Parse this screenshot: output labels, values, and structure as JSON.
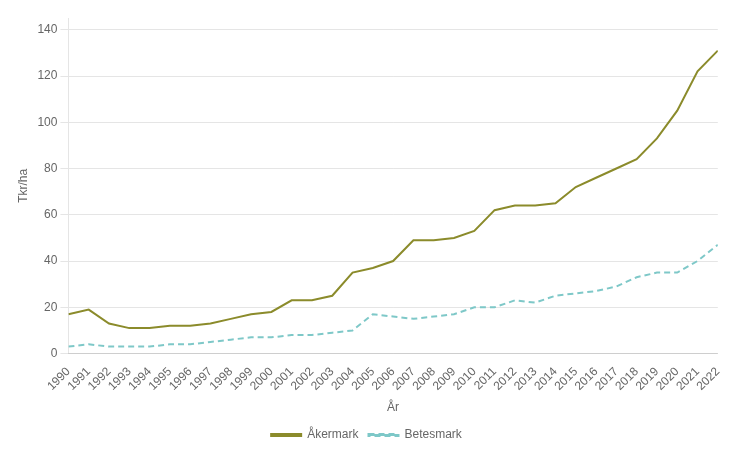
{
  "chart_data": {
    "type": "line",
    "x_label": "År",
    "y_label": "Tkr/ha",
    "x": [
      1990,
      1991,
      1992,
      1993,
      1994,
      1995,
      1996,
      1997,
      1998,
      1999,
      2000,
      2001,
      2002,
      2003,
      2004,
      2005,
      2006,
      2007,
      2008,
      2009,
      2010,
      2011,
      2012,
      2013,
      2014,
      2015,
      2016,
      2017,
      2018,
      2019,
      2020,
      2021,
      2022
    ],
    "series": [
      {
        "name": "Åkermark",
        "color": "#8b8b2b",
        "line_style": "solid",
        "values": [
          17,
          19,
          13,
          11,
          11,
          12,
          12,
          13,
          15,
          17,
          18,
          23,
          23,
          25,
          35,
          37,
          40,
          49,
          49,
          50,
          53,
          62,
          64,
          64,
          65,
          72,
          76,
          80,
          84,
          93,
          105,
          122,
          131
        ]
      },
      {
        "name": "Betesmark",
        "color": "#7ec8c8",
        "line_style": "dashed",
        "values": [
          3,
          4,
          3,
          3,
          3,
          4,
          4,
          5,
          6,
          7,
          7,
          8,
          8,
          9,
          10,
          17,
          16,
          15,
          16,
          17,
          20,
          20,
          23,
          22,
          25,
          26,
          27,
          29,
          33,
          35,
          35,
          40,
          47
        ]
      }
    ],
    "xlim": [
      1990,
      2022
    ],
    "xticks": [
      1990,
      1991,
      1992,
      1993,
      1994,
      1995,
      1996,
      1997,
      1998,
      1999,
      2000,
      2001,
      2002,
      2003,
      2004,
      2005,
      2006,
      2007,
      2008,
      2009,
      2010,
      2011,
      2012,
      2013,
      2014,
      2015,
      2016,
      2017,
      2018,
      2019,
      2020,
      2021,
      2022
    ],
    "ylim": [
      0,
      145
    ],
    "yticks": [
      0,
      20,
      40,
      60,
      80,
      100,
      120,
      140
    ],
    "grid": true,
    "legend": "bottom"
  }
}
